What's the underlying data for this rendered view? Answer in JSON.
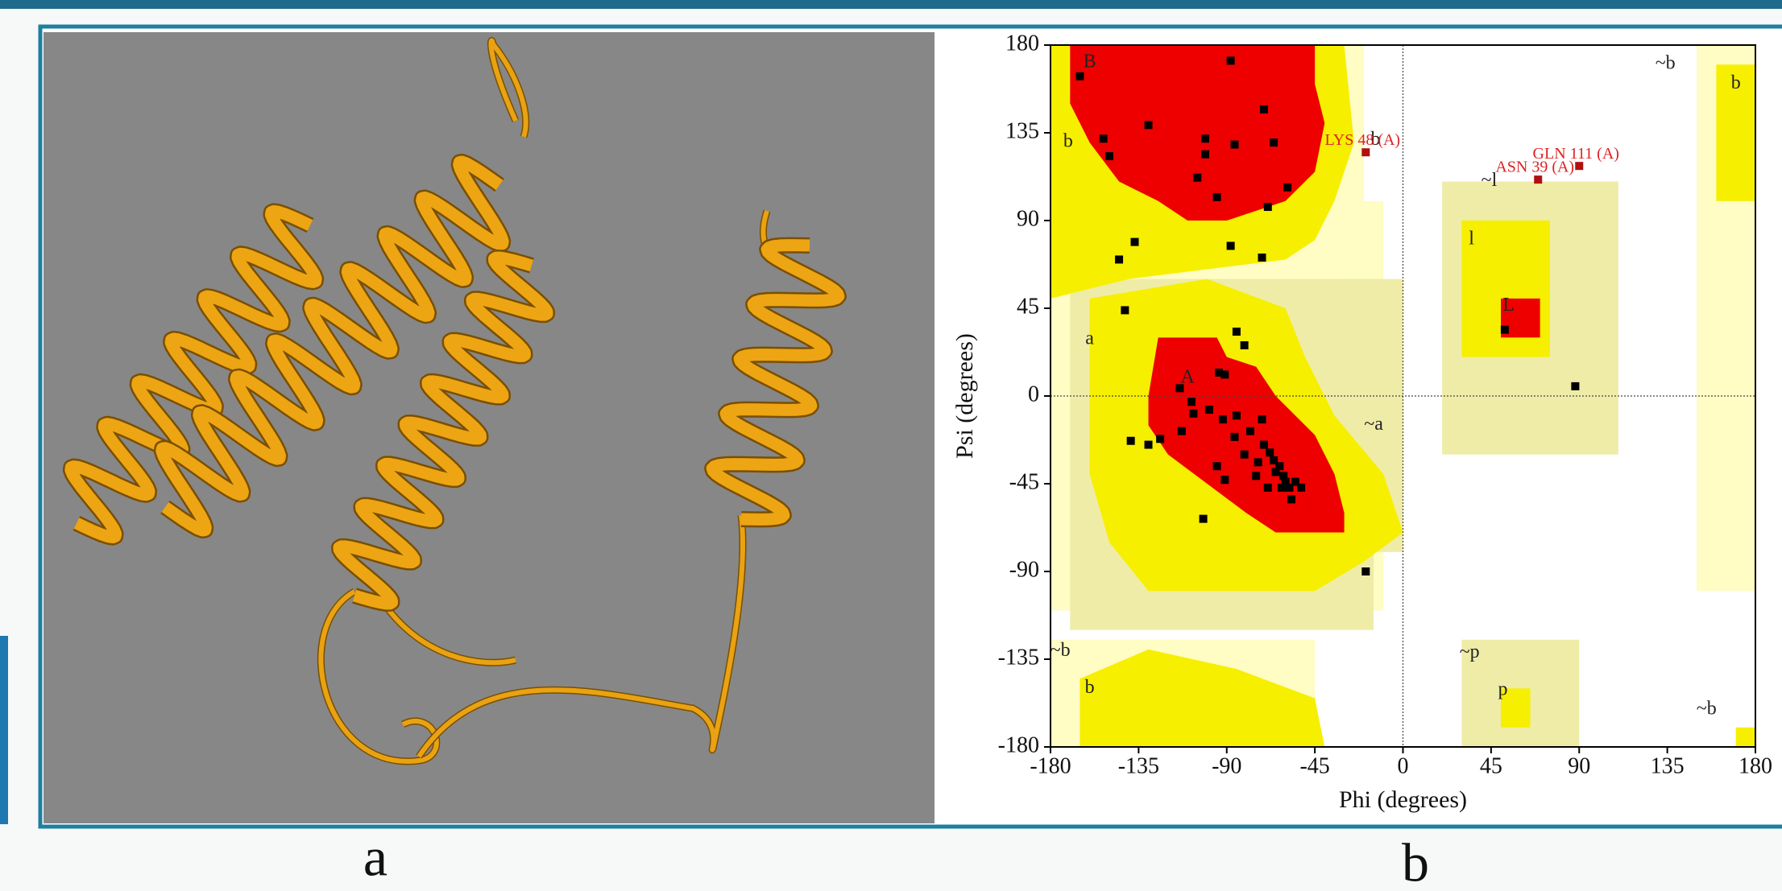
{
  "panel_labels": {
    "a": "a",
    "b": "b"
  },
  "chart_data": {
    "type": "scatter",
    "x_label": "Phi (degrees)",
    "y_label": "Psi (degrees)",
    "xlim": [
      -180,
      180
    ],
    "ylim": [
      -180,
      180
    ],
    "xticks": [
      -180,
      -135,
      -90,
      -45,
      0,
      45,
      90,
      135,
      180
    ],
    "yticks": [
      -180,
      -135,
      -90,
      -45,
      0,
      45,
      90,
      135,
      180
    ],
    "zero_lines": true,
    "series": [
      {
        "color": "#000000",
        "marker": "square",
        "x": [
          -165,
          -130,
          -153,
          -150,
          -88,
          -71,
          -86,
          -101,
          -101,
          -105,
          -66,
          -95,
          -69,
          -59,
          -137,
          -145,
          -88,
          -72,
          -142,
          -85,
          -81,
          -114,
          -94,
          -91,
          -108,
          -99,
          -92,
          -85,
          -78,
          -72,
          -71,
          -68,
          -66,
          -63,
          -61,
          -60,
          -58,
          -65,
          -62,
          -55,
          -86,
          -81,
          -95,
          -91,
          -107,
          -113,
          -139,
          -130,
          -124,
          -102,
          -19,
          52,
          88,
          -75,
          -69,
          -57,
          -52,
          -74
        ],
        "values": [
          164,
          139,
          132,
          123,
          172,
          147,
          129,
          132,
          124,
          112,
          130,
          102,
          97,
          107,
          79,
          70,
          77,
          71,
          44,
          33,
          26,
          4,
          12,
          11,
          -3,
          -7,
          -12,
          -10,
          -18,
          -12,
          -25,
          -29,
          -33,
          -36,
          -41,
          -44,
          -47,
          -39,
          -47,
          -44,
          -21,
          -30,
          -36,
          -43,
          -9,
          -18,
          -23,
          -25,
          -22,
          -63,
          -90,
          34,
          5,
          -41,
          -47,
          -53,
          -47,
          -34
        ]
      },
      {
        "color": "#b01010",
        "marker": "square",
        "x": [
          -19,
          69,
          90
        ],
        "values": [
          125,
          111,
          118
        ],
        "point_labels": [
          "LYS 48 (A)",
          "ASN 39 (A)",
          "GLN 111 (A)"
        ]
      }
    ],
    "region_labels": [
      {
        "text": "B",
        "x": -160,
        "y": 171
      },
      {
        "text": "b",
        "x": -171,
        "y": 130
      },
      {
        "text": "b",
        "x": -14,
        "y": 131
      },
      {
        "text": "a",
        "x": -160,
        "y": 29
      },
      {
        "text": "A",
        "x": -110,
        "y": 9
      },
      {
        "text": "~a",
        "x": -15,
        "y": -15
      },
      {
        "text": "~b",
        "x": 134,
        "y": 170
      },
      {
        "text": "b",
        "x": 170,
        "y": 160
      },
      {
        "text": "~l",
        "x": 44,
        "y": 110
      },
      {
        "text": "l",
        "x": 35,
        "y": 80
      },
      {
        "text": "L",
        "x": 54,
        "y": 46
      },
      {
        "text": "~b",
        "x": -175,
        "y": -131
      },
      {
        "text": "b",
        "x": -160,
        "y": -150
      },
      {
        "text": "~p",
        "x": 34,
        "y": -132
      },
      {
        "text": "p",
        "x": 51,
        "y": -151
      },
      {
        "text": "~b",
        "x": 155,
        "y": -161
      }
    ]
  }
}
